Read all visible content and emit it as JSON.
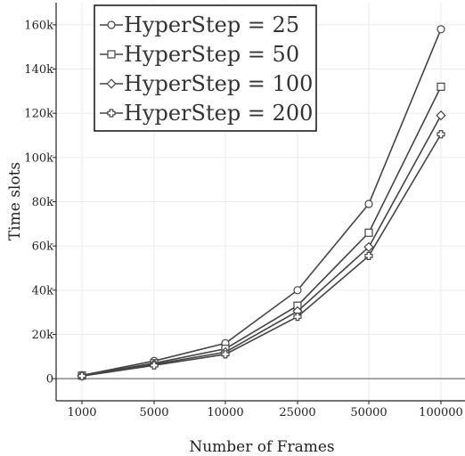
{
  "chart_data": {
    "type": "line",
    "categories": [
      "1000",
      "5000",
      "10000",
      "25000",
      "50000",
      "100000"
    ],
    "xlabel": "Number of Frames",
    "ylabel": "Time slots",
    "ylim": [
      -10000,
      170000
    ],
    "yticks": [
      0,
      20000,
      40000,
      60000,
      80000,
      100000,
      120000,
      140000,
      160000
    ],
    "ytick_labels": [
      "0",
      "20k",
      "40k",
      "60k",
      "80k",
      "100k",
      "120k",
      "140k",
      "160k"
    ],
    "grid": true,
    "legend_position": "top-left",
    "line_color": "#444444",
    "series": [
      {
        "name": "HyperStep = 25",
        "marker": "circle",
        "values": [
          1500,
          8000,
          16000,
          40000,
          79000,
          158000
        ]
      },
      {
        "name": "HyperStep = 50",
        "marker": "square",
        "values": [
          1400,
          7000,
          13500,
          33000,
          66000,
          132000
        ]
      },
      {
        "name": "HyperStep = 100",
        "marker": "diamond",
        "values": [
          1300,
          6500,
          12000,
          30500,
          59500,
          119000
        ]
      },
      {
        "name": "HyperStep = 200",
        "marker": "plus",
        "values": [
          1200,
          6000,
          11000,
          28000,
          55500,
          110500
        ]
      }
    ]
  }
}
